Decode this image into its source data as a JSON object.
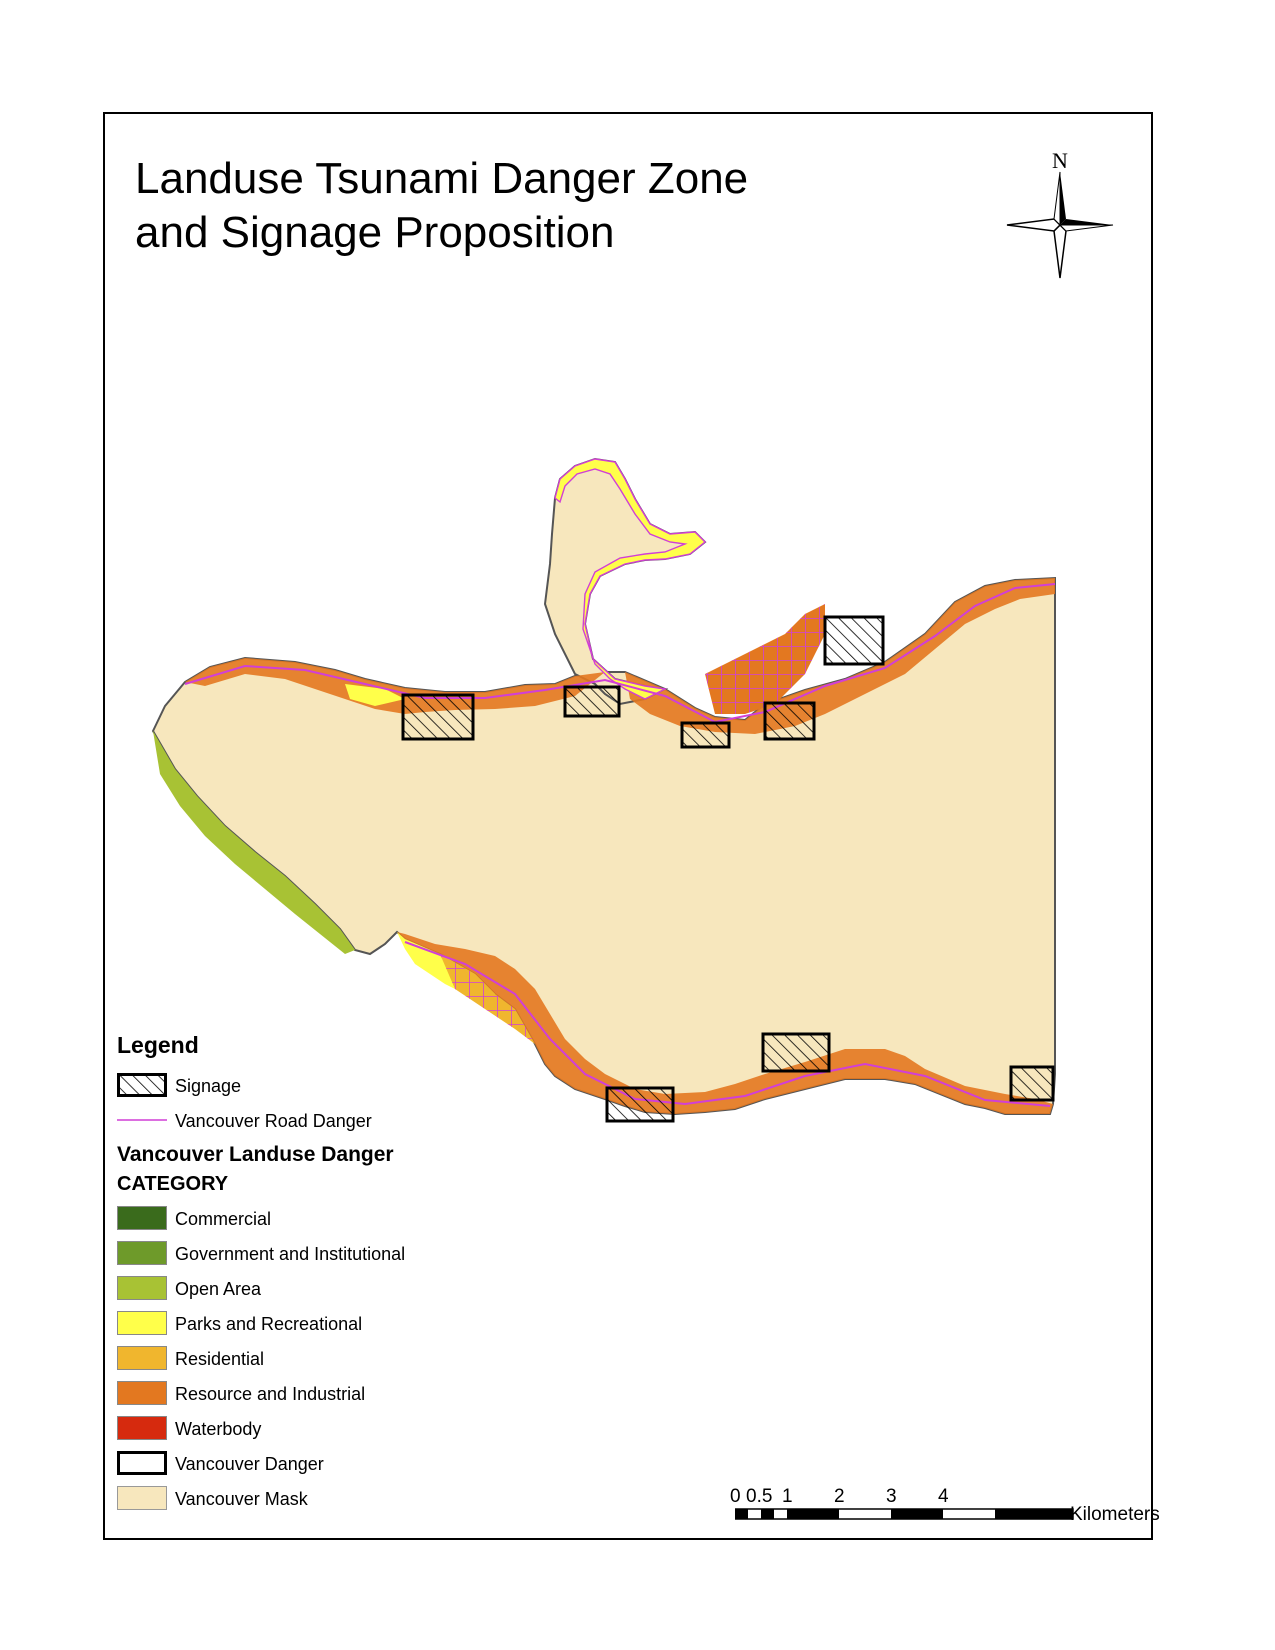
{
  "title": {
    "line1": "Landuse Tsunami Danger Zone",
    "line2": "and Signage Proposition"
  },
  "north_arrow": {
    "label": "N",
    "icon": "compass-star-icon"
  },
  "legend": {
    "heading": "Legend",
    "signage_label": "Signage",
    "road_label": "Vancouver Road Danger",
    "landuse_heading": "Vancouver Landuse Danger",
    "category_heading": "CATEGORY",
    "categories": [
      {
        "label": "Commercial",
        "color": "#3a6b1c"
      },
      {
        "label": "Government and Institutional",
        "color": "#6e9a2a"
      },
      {
        "label": "Open Area",
        "color": "#a8c234"
      },
      {
        "label": "Parks and Recreational",
        "color": "#ffff4a"
      },
      {
        "label": "Residential",
        "color": "#f0b62e"
      },
      {
        "label": "Resource and Industrial",
        "color": "#e37820"
      },
      {
        "label": "Waterbody",
        "color": "#d62a0e"
      }
    ],
    "danger_label": "Vancouver Danger",
    "mask_label": "Vancouver Mask",
    "mask_color": "#f7e7bd",
    "road_color": "#d13fd6"
  },
  "scale_bar": {
    "ticks": [
      "0",
      "0.5",
      "1",
      "2",
      "3",
      "4"
    ],
    "unit": "Kilometers"
  }
}
